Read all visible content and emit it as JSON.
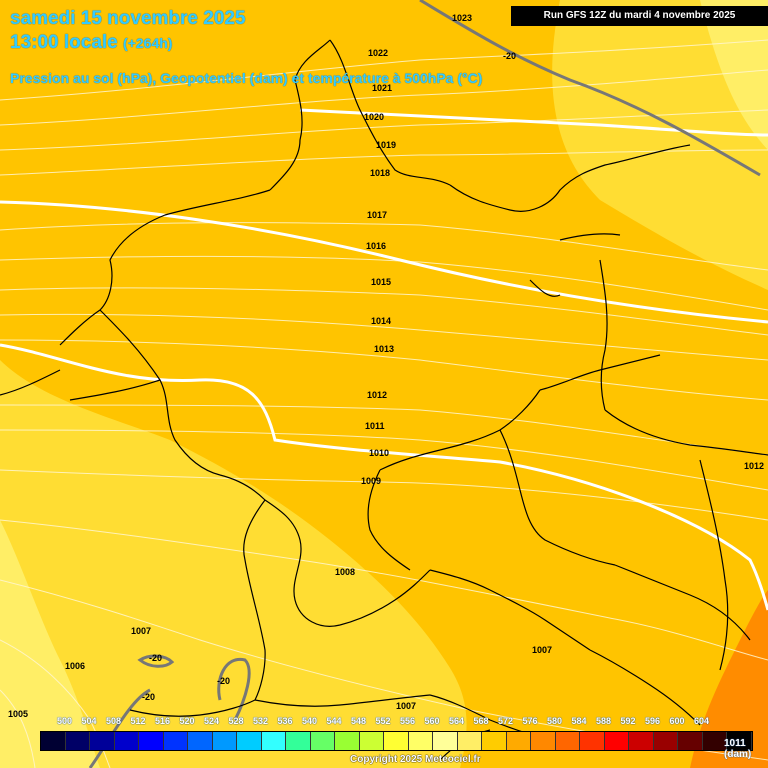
{
  "header": {
    "title_line1": "samedi 15 novembre 2025",
    "title_line2": "13:00 locale",
    "title_line2_offset": "(+264h)",
    "subtitle": "Pression au sol (hPa), Geopotentiel (dam) et température à 500hPa (°C)",
    "run_info": "Run GFS 12Z du mardi 4 novembre 2025"
  },
  "isobars": [
    "1023",
    "1022",
    "1021",
    "1020",
    "1019",
    "1018",
    "1017",
    "1016",
    "1015",
    "1014",
    "1013",
    "1012",
    "1011",
    "1010",
    "1009",
    "1008",
    "1007",
    "1007",
    "1007",
    "1006",
    "1005",
    "1012"
  ],
  "temperature_labels": [
    "-20",
    "-20",
    "-20",
    "-20"
  ],
  "legend": {
    "labels": [
      "500",
      "504",
      "508",
      "512",
      "516",
      "520",
      "524",
      "528",
      "532",
      "536",
      "540",
      "544",
      "548",
      "552",
      "556",
      "560",
      "564",
      "568",
      "572",
      "576",
      "580",
      "584",
      "588",
      "592",
      "596",
      "600",
      "604"
    ],
    "colors": [
      "#000033",
      "#000066",
      "#000099",
      "#0000cc",
      "#0000ff",
      "#0033ff",
      "#0066ff",
      "#0099ff",
      "#00ccff",
      "#33ffff",
      "#33ff99",
      "#66ff66",
      "#99ff33",
      "#ccff33",
      "#ffff33",
      "#ffff66",
      "#ffff99",
      "#ffee66",
      "#ffcc00",
      "#ffaa00",
      "#ff8800",
      "#ff6600",
      "#ff3300",
      "#ff0000",
      "#cc0000",
      "#990000",
      "#660000",
      "#330000",
      "#000000"
    ],
    "end_value": "1011",
    "unit": "(dam)"
  },
  "copyright": "Copyright 2025 Meteociel.fr"
}
